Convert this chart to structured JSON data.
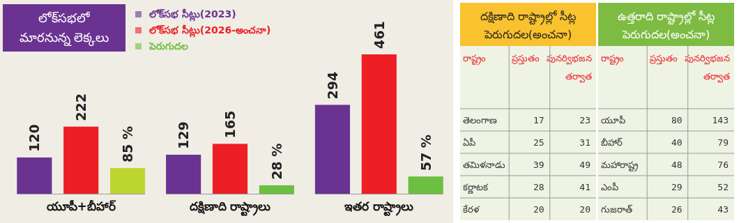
{
  "chart_data": [
    {
      "type": "bar",
      "title": "లోక్‌సభలో మారనున్న లెక్కలు",
      "categories": [
        "యూపీ+బీహార్",
        "దక్షిణాది రాష్ట్రాలు",
        "ఇతర రాష్ట్రాలు"
      ],
      "legend": "top",
      "series": [
        {
          "name": "లోక్‌సభ సీట్లు(2023)",
          "color": "#6b3391",
          "values": [
            120,
            129,
            294
          ],
          "value_labels": [
            "120",
            "129",
            "294"
          ]
        },
        {
          "name": "లోక్‌సభ సీట్లు(2026-అంచనా)",
          "color": "#ed1f24",
          "values": [
            222,
            165,
            461
          ],
          "value_labels": [
            "222",
            "165",
            "461"
          ]
        },
        {
          "name": "పెరుగుదల",
          "color": "#6cbf40",
          "colors": [
            "#bcd631",
            "#6cbf40",
            "#6cbf40"
          ],
          "values": [
            85,
            28,
            57
          ],
          "value_labels": [
            "85 %",
            "28 %",
            "57 %"
          ]
        }
      ]
    },
    {
      "type": "other",
      "title": "దక్షిణాది రాష్ట్రాల్లో సీట్ల పెరుగుదల(అంచనా)",
      "color": "#f9c22e",
      "annotations": [
        "రాష్ట్రం",
        "ప్రస్తుతం",
        "పునర్విభజన తర్వాత",
        "తెలంగాణ",
        "17",
        "23",
        "ఏపీ",
        "25",
        "31",
        "తమిళనాడు",
        "39",
        "49",
        "కర్ణాటక",
        "28",
        "41",
        "కేరళ",
        "20",
        "20"
      ]
    },
    {
      "type": "other",
      "title": "ఉత్తరాది రాష్ట్రాల్లో సీట్ల పెరుగుదల(అంచనా)",
      "color": "#7dbb42",
      "annotations": [
        "రాష్ట్రం",
        "ప్రస్తుతం",
        "పునర్విభజన తర్వాత",
        "యూపీ",
        "80",
        "143",
        "బీహార్",
        "40",
        "79",
        "మహారాష్ట్ర",
        "48",
        "76",
        "ఎంపీ",
        "29",
        "52",
        "గుజరాత్",
        "26",
        "43"
      ]
    }
  ]
}
